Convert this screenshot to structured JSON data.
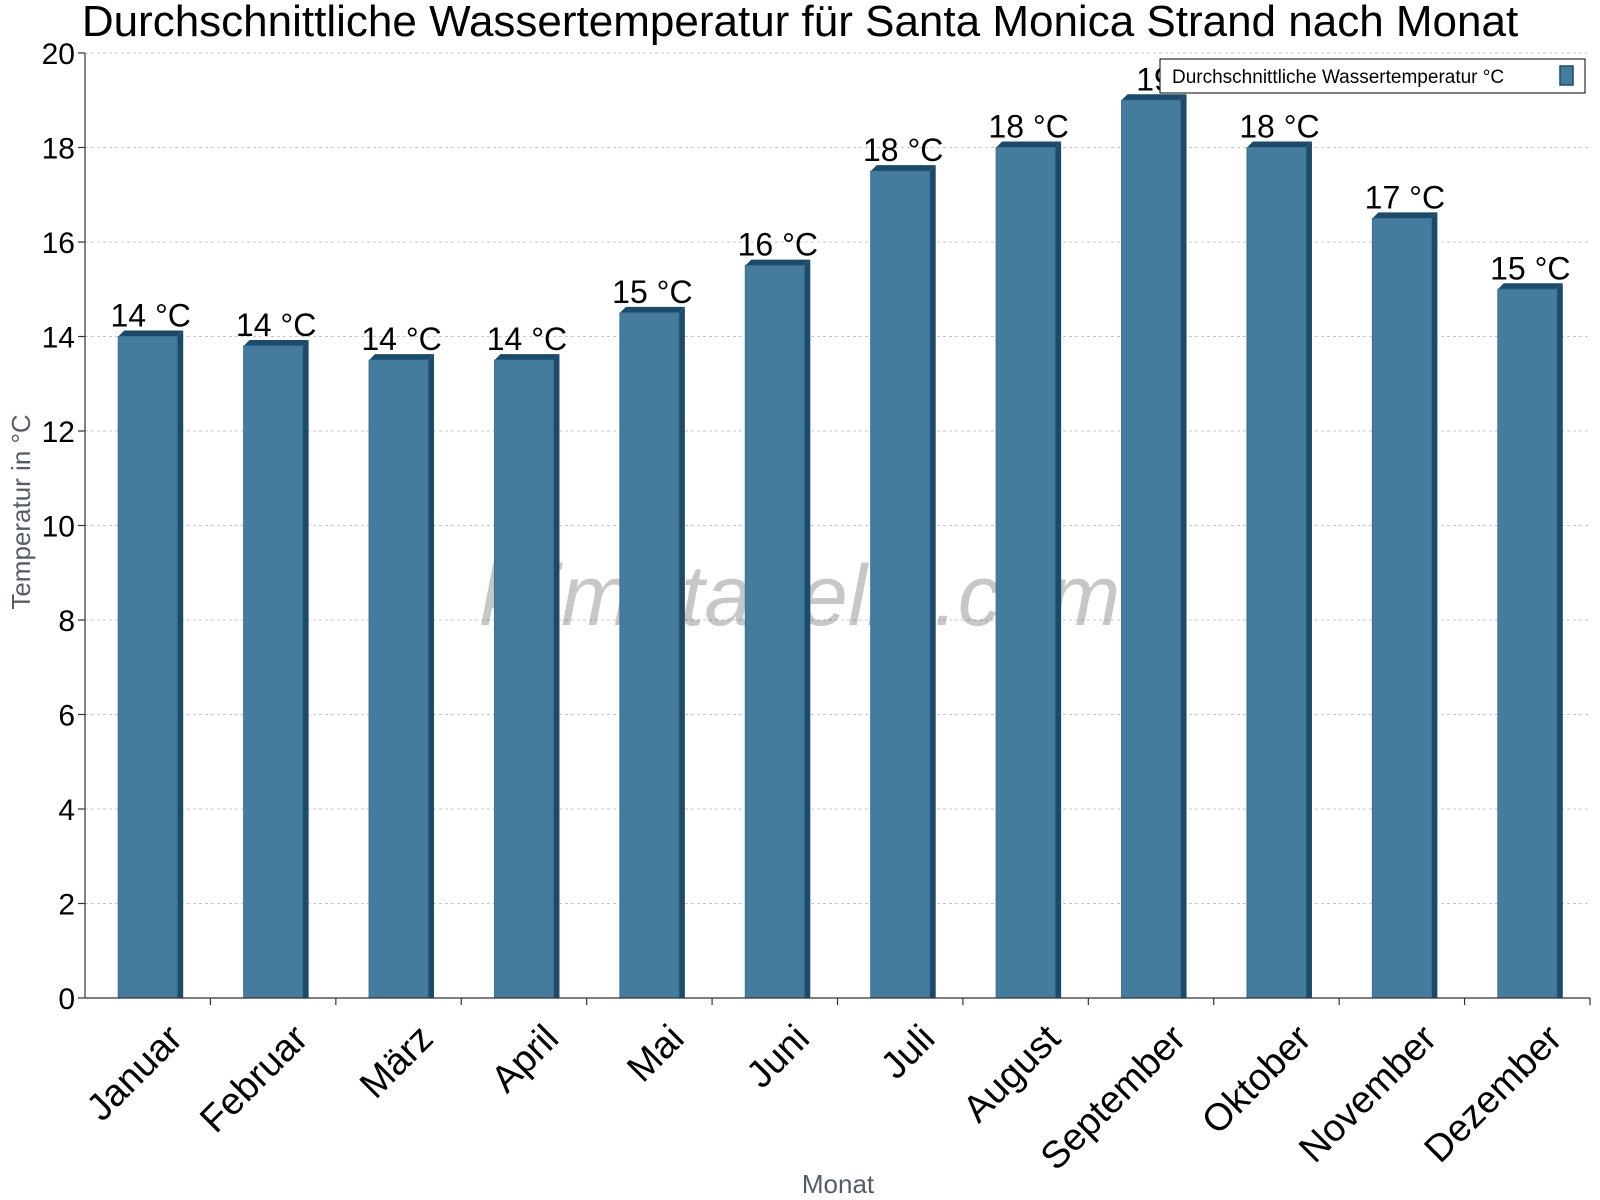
{
  "chart_data": {
    "type": "bar",
    "title": "Durchschnittliche Wassertemperatur für Santa Monica Strand nach Monat",
    "xlabel": "Monat",
    "ylabel": "Temperatur in °C",
    "ylim": [
      0,
      20
    ],
    "yticks": [
      "0",
      "2",
      "4",
      "6",
      "8",
      "10",
      "12",
      "14",
      "16",
      "18",
      "20"
    ],
    "grid": true,
    "legend_position": "top-right",
    "categories": [
      "Januar",
      "Februar",
      "März",
      "April",
      "Mai",
      "Juni",
      "Juli",
      "August",
      "September",
      "Oktober",
      "November",
      "Dezember"
    ],
    "series": [
      {
        "name": "Durchschnittliche Wassertemperatur °C",
        "color": "#457b9d",
        "values": [
          14,
          13.8,
          13.5,
          13.5,
          14.5,
          15.5,
          17.5,
          18,
          19,
          18,
          16.5,
          15
        ],
        "data_labels": [
          "14 °C",
          "14 °C",
          "14 °C",
          "14 °C",
          "15 °C",
          "16 °C",
          "18 °C",
          "18 °C",
          "19",
          "18 °C",
          "17 °C",
          "15 °C"
        ]
      }
    ],
    "watermark": "klimatabelle.com"
  }
}
